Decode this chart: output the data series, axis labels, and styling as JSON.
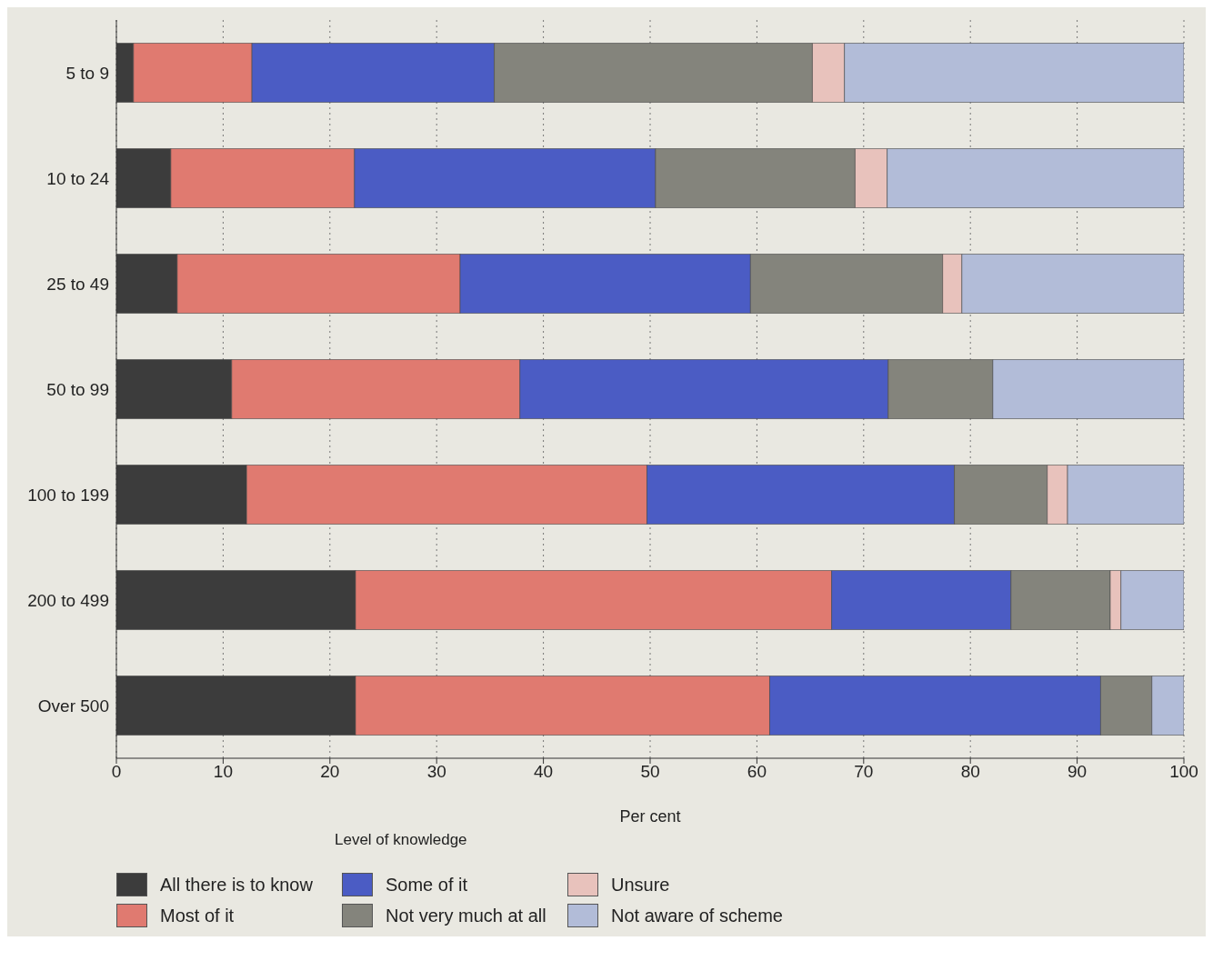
{
  "chart_data": {
    "type": "bar",
    "orientation": "horizontal",
    "stacked": true,
    "categories": [
      "5 to 9",
      "10 to 24",
      "25 to 49",
      "50 to 99",
      "100 to 199",
      "200 to 499",
      "Over 500"
    ],
    "series": [
      {
        "name": "All there is to know",
        "color": "#3c3c3c",
        "values": [
          1.6,
          5.1,
          5.7,
          10.8,
          12.2,
          22.4,
          22.4
        ]
      },
      {
        "name": "Most of it",
        "color": "#e07a70",
        "values": [
          11.1,
          17.2,
          26.5,
          27.0,
          37.5,
          44.6,
          38.8
        ]
      },
      {
        "name": "Some of it",
        "color": "#4b5cc4",
        "values": [
          22.7,
          28.2,
          27.2,
          34.5,
          28.8,
          16.8,
          31.0
        ]
      },
      {
        "name": "Not very much at all",
        "color": "#84847c",
        "values": [
          29.8,
          18.7,
          18.0,
          9.8,
          8.7,
          9.3,
          4.8
        ]
      },
      {
        "name": "Unsure",
        "color": "#e8c2bc",
        "values": [
          3.0,
          3.0,
          1.8,
          0,
          1.9,
          1.0,
          0
        ]
      },
      {
        "name": "Not aware of scheme",
        "color": "#b2bcd8",
        "values": [
          31.8,
          27.8,
          20.8,
          17.9,
          10.9,
          5.9,
          3.0
        ]
      }
    ],
    "xlim": [
      0,
      100
    ],
    "xticks": [
      0,
      10,
      20,
      30,
      40,
      50,
      60,
      70,
      80,
      90,
      100
    ],
    "xlabel": "Per cent",
    "legend_title": "Level of knowledge",
    "legend": "bottom",
    "grid": "x"
  }
}
